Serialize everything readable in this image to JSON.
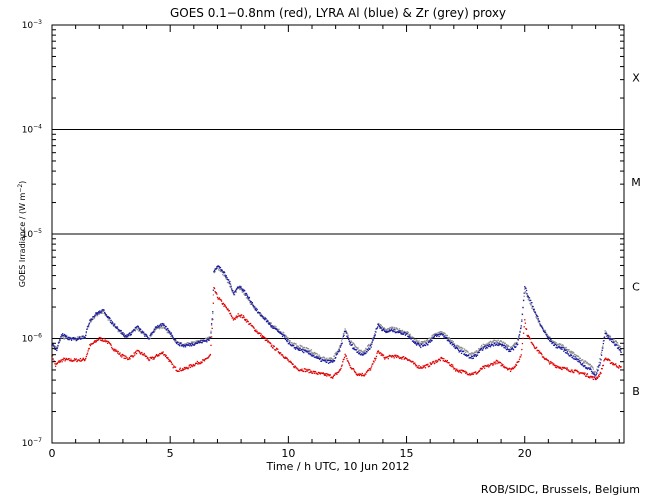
{
  "chart_data": {
    "type": "scatter",
    "title": "GOES 0.1−0.8nm (red), LYRA Al (blue) & Zr (grey) proxy",
    "xlabel": "Time / h UTC, 10 Jun 2012",
    "ylabel": "GOES Irradiance / (W m",
    "ylabel_sup": "−2",
    "ylabel_end": ")",
    "credit": "ROB/SIDC, Brussels, Belgium",
    "xlim": [
      0,
      24.2
    ],
    "ylim": [
      1e-07,
      0.001
    ],
    "yscale": "log",
    "x_ticks": [
      0,
      5,
      10,
      15,
      20
    ],
    "x_tick_labels": [
      "0",
      "5",
      "10",
      "15",
      "20"
    ],
    "y_ticks": [
      {
        "value": 1e-07,
        "base": "10",
        "exp": "−7"
      },
      {
        "value": 1e-06,
        "base": "10",
        "exp": "−6"
      },
      {
        "value": 1e-05,
        "base": "10",
        "exp": "−5"
      },
      {
        "value": 0.0001,
        "base": "10",
        "exp": "−4"
      },
      {
        "value": 0.001,
        "base": "10",
        "exp": "−3"
      }
    ],
    "flare_class_lines": [
      1e-06,
      1e-05,
      0.0001
    ],
    "flare_classes": [
      {
        "label": "X",
        "value": 0.000316
      },
      {
        "label": "M",
        "value": 3.16e-05
      },
      {
        "label": "C",
        "value": 3.16e-06
      },
      {
        "label": "B",
        "value": 3.16e-07
      }
    ],
    "series": [
      {
        "name": "GOES 0.1-0.8nm",
        "color": "#e00000",
        "points": [
          [
            0.0,
            7e-07
          ],
          [
            0.15,
            5.5e-07
          ],
          [
            0.3,
            6e-07
          ],
          [
            0.5,
            6.3e-07
          ],
          [
            0.8,
            6.2e-07
          ],
          [
            1.0,
            6.2e-07
          ],
          [
            1.4,
            6.3e-07
          ],
          [
            1.6,
            8.5e-07
          ],
          [
            1.8,
            9.2e-07
          ],
          [
            2.0,
            1e-06
          ],
          [
            2.3,
            9.5e-07
          ],
          [
            2.6,
            8e-07
          ],
          [
            2.9,
            7e-07
          ],
          [
            3.2,
            6.4e-07
          ],
          [
            3.4,
            6.8e-07
          ],
          [
            3.6,
            7.5e-07
          ],
          [
            3.9,
            7e-07
          ],
          [
            4.1,
            6.3e-07
          ],
          [
            4.3,
            6.5e-07
          ],
          [
            4.5,
            7e-07
          ],
          [
            4.7,
            7.3e-07
          ],
          [
            4.9,
            6.5e-07
          ],
          [
            5.1,
            5.5e-07
          ],
          [
            5.3,
            5e-07
          ],
          [
            5.6,
            5.1e-07
          ],
          [
            5.9,
            5.5e-07
          ],
          [
            6.2,
            5.9e-07
          ],
          [
            6.5,
            6.2e-07
          ],
          [
            6.7,
            7e-07
          ],
          [
            6.8,
            1.5e-06
          ],
          [
            6.85,
            3e-06
          ],
          [
            7.0,
            2.5e-06
          ],
          [
            7.2,
            2.2e-06
          ],
          [
            7.5,
            1.8e-06
          ],
          [
            7.7,
            1.5e-06
          ],
          [
            7.9,
            1.7e-06
          ],
          [
            8.1,
            1.6e-06
          ],
          [
            8.4,
            1.35e-06
          ],
          [
            8.7,
            1.15e-06
          ],
          [
            9.0,
            1e-06
          ],
          [
            9.3,
            8.5e-07
          ],
          [
            9.6,
            7.5e-07
          ],
          [
            9.9,
            6.5e-07
          ],
          [
            10.1,
            5.8e-07
          ],
          [
            10.4,
            5.1e-07
          ],
          [
            10.7,
            5e-07
          ],
          [
            11.0,
            4.8e-07
          ],
          [
            11.3,
            4.6e-07
          ],
          [
            11.6,
            4.5e-07
          ],
          [
            11.9,
            4.3e-07
          ],
          [
            12.2,
            5e-07
          ],
          [
            12.4,
            7e-07
          ],
          [
            12.6,
            5.5e-07
          ],
          [
            12.9,
            4.6e-07
          ],
          [
            13.2,
            4.5e-07
          ],
          [
            13.5,
            5.2e-07
          ],
          [
            13.8,
            7.5e-07
          ],
          [
            14.1,
            6.5e-07
          ],
          [
            14.4,
            6.8e-07
          ],
          [
            14.7,
            6.6e-07
          ],
          [
            15.0,
            6.5e-07
          ],
          [
            15.2,
            6e-07
          ],
          [
            15.4,
            5.5e-07
          ],
          [
            15.6,
            5.3e-07
          ],
          [
            15.9,
            5.5e-07
          ],
          [
            16.2,
            6e-07
          ],
          [
            16.5,
            6.4e-07
          ],
          [
            16.8,
            5.8e-07
          ],
          [
            17.1,
            5e-07
          ],
          [
            17.4,
            4.8e-07
          ],
          [
            17.7,
            4.6e-07
          ],
          [
            18.0,
            4.7e-07
          ],
          [
            18.2,
            5.2e-07
          ],
          [
            18.5,
            5.5e-07
          ],
          [
            18.8,
            6e-07
          ],
          [
            19.1,
            5.5e-07
          ],
          [
            19.4,
            5e-07
          ],
          [
            19.7,
            5.8e-07
          ],
          [
            19.85,
            7e-07
          ],
          [
            20.0,
            1.5e-06
          ],
          [
            20.1,
            1.1e-06
          ],
          [
            20.4,
            8.5e-07
          ],
          [
            20.7,
            7e-07
          ],
          [
            21.0,
            6e-07
          ],
          [
            21.3,
            5.5e-07
          ],
          [
            21.6,
            5.2e-07
          ],
          [
            21.9,
            5e-07
          ],
          [
            22.2,
            4.8e-07
          ],
          [
            22.5,
            4.6e-07
          ],
          [
            22.8,
            4.3e-07
          ],
          [
            23.0,
            4.1e-07
          ],
          [
            23.2,
            4.6e-07
          ],
          [
            23.4,
            6.5e-07
          ],
          [
            23.6,
            6e-07
          ],
          [
            23.9,
            5.5e-07
          ],
          [
            24.1,
            5.2e-07
          ]
        ]
      },
      {
        "name": "LYRA Zr proxy",
        "color": "#8c8c8c",
        "points": [
          [
            0.0,
            9e-07
          ],
          [
            0.2,
            8e-07
          ],
          [
            0.4,
            1.05e-06
          ],
          [
            0.7,
            9.8e-07
          ],
          [
            1.0,
            1e-06
          ],
          [
            1.4,
            1.05e-06
          ],
          [
            1.6,
            1.45e-06
          ],
          [
            1.9,
            1.7e-06
          ],
          [
            2.2,
            1.8e-06
          ],
          [
            2.5,
            1.4e-06
          ],
          [
            2.8,
            1.2e-06
          ],
          [
            3.1,
            1.05e-06
          ],
          [
            3.3,
            1.1e-06
          ],
          [
            3.6,
            1.25e-06
          ],
          [
            3.9,
            1.1e-06
          ],
          [
            4.1,
            1e-06
          ],
          [
            4.4,
            1.25e-06
          ],
          [
            4.7,
            1.3e-06
          ],
          [
            5.0,
            1.1e-06
          ],
          [
            5.3,
            9e-07
          ],
          [
            5.6,
            8.7e-07
          ],
          [
            5.9,
            9e-07
          ],
          [
            6.2,
            9.3e-07
          ],
          [
            6.5,
            9.8e-07
          ],
          [
            6.7,
            1.05e-06
          ],
          [
            6.8,
            1.7e-06
          ],
          [
            6.85,
            4.2e-06
          ],
          [
            7.0,
            4.8e-06
          ],
          [
            7.2,
            4.3e-06
          ],
          [
            7.5,
            3.3e-06
          ],
          [
            7.7,
            2.6e-06
          ],
          [
            7.9,
            3.1e-06
          ],
          [
            8.1,
            2.8e-06
          ],
          [
            8.4,
            2.2e-06
          ],
          [
            8.7,
            1.8e-06
          ],
          [
            9.0,
            1.55e-06
          ],
          [
            9.3,
            1.35e-06
          ],
          [
            9.6,
            1.2e-06
          ],
          [
            9.9,
            1.05e-06
          ],
          [
            10.1,
            9e-07
          ],
          [
            10.4,
            8.5e-07
          ],
          [
            10.7,
            8e-07
          ],
          [
            11.0,
            7.5e-07
          ],
          [
            11.3,
            6.8e-07
          ],
          [
            11.6,
            6.4e-07
          ],
          [
            11.9,
            6.5e-07
          ],
          [
            12.2,
            8.5e-07
          ],
          [
            12.4,
            1.25e-06
          ],
          [
            12.6,
            9.5e-07
          ],
          [
            12.9,
            8e-07
          ],
          [
            13.2,
            7.5e-07
          ],
          [
            13.5,
            9e-07
          ],
          [
            13.8,
            1.4e-06
          ],
          [
            14.1,
            1.2e-06
          ],
          [
            14.4,
            1.25e-06
          ],
          [
            14.7,
            1.2e-06
          ],
          [
            15.0,
            1.15e-06
          ],
          [
            15.2,
            1.05e-06
          ],
          [
            15.4,
            9.5e-07
          ],
          [
            15.6,
            9e-07
          ],
          [
            15.9,
            9.5e-07
          ],
          [
            16.2,
            1.1e-06
          ],
          [
            16.5,
            1.15e-06
          ],
          [
            16.8,
            1e-06
          ],
          [
            17.1,
            8.5e-07
          ],
          [
            17.4,
            7.8e-07
          ],
          [
            17.7,
            7e-07
          ],
          [
            18.0,
            7.5e-07
          ],
          [
            18.2,
            8.5e-07
          ],
          [
            18.5,
            9e-07
          ],
          [
            18.8,
            9.5e-07
          ],
          [
            19.1,
            9e-07
          ],
          [
            19.4,
            8e-07
          ],
          [
            19.7,
            9.5e-07
          ],
          [
            19.85,
            1.3e-06
          ],
          [
            20.0,
            3e-06
          ],
          [
            20.1,
            2.5e-06
          ],
          [
            20.4,
            1.8e-06
          ],
          [
            20.7,
            1.3e-06
          ],
          [
            21.0,
            1.05e-06
          ],
          [
            21.3,
            9e-07
          ],
          [
            21.6,
            8.5e-07
          ],
          [
            21.9,
            7.5e-07
          ],
          [
            22.2,
            6.8e-07
          ],
          [
            22.5,
            6e-07
          ],
          [
            22.8,
            5.5e-07
          ],
          [
            23.0,
            4.6e-07
          ],
          [
            23.2,
            6.5e-07
          ],
          [
            23.4,
            1.15e-06
          ],
          [
            23.6,
            1.05e-06
          ],
          [
            23.9,
            9e-07
          ],
          [
            24.1,
            8e-07
          ]
        ]
      },
      {
        "name": "LYRA Al proxy",
        "color": "#1a1aa0",
        "points": [
          [
            0.0,
            8.8e-07
          ],
          [
            0.2,
            7.8e-07
          ],
          [
            0.4,
            1.1e-06
          ],
          [
            0.7,
            1e-06
          ],
          [
            1.0,
            9.8e-07
          ],
          [
            1.4,
            1.05e-06
          ],
          [
            1.6,
            1.5e-06
          ],
          [
            1.9,
            1.75e-06
          ],
          [
            2.2,
            1.85e-06
          ],
          [
            2.5,
            1.45e-06
          ],
          [
            2.8,
            1.25e-06
          ],
          [
            3.1,
            1.05e-06
          ],
          [
            3.3,
            1.1e-06
          ],
          [
            3.6,
            1.3e-06
          ],
          [
            3.9,
            1.1e-06
          ],
          [
            4.1,
            1e-06
          ],
          [
            4.4,
            1.3e-06
          ],
          [
            4.7,
            1.35e-06
          ],
          [
            5.0,
            1.15e-06
          ],
          [
            5.3,
            9e-07
          ],
          [
            5.6,
            8.5e-07
          ],
          [
            5.9,
            8.8e-07
          ],
          [
            6.2,
            9.2e-07
          ],
          [
            6.5,
            9.5e-07
          ],
          [
            6.7,
            1e-06
          ],
          [
            6.8,
            1.8e-06
          ],
          [
            6.85,
            4.5e-06
          ],
          [
            7.0,
            5e-06
          ],
          [
            7.2,
            4.5e-06
          ],
          [
            7.5,
            3.5e-06
          ],
          [
            7.7,
            2.7e-06
          ],
          [
            7.9,
            3.2e-06
          ],
          [
            8.1,
            2.9e-06
          ],
          [
            8.4,
            2.3e-06
          ],
          [
            8.7,
            1.8e-06
          ],
          [
            9.0,
            1.55e-06
          ],
          [
            9.3,
            1.3e-06
          ],
          [
            9.6,
            1.15e-06
          ],
          [
            9.9,
            1e-06
          ],
          [
            10.1,
            8.5e-07
          ],
          [
            10.4,
            8e-07
          ],
          [
            10.7,
            7.5e-07
          ],
          [
            11.0,
            7e-07
          ],
          [
            11.3,
            6.3e-07
          ],
          [
            11.6,
            6e-07
          ],
          [
            11.9,
            6e-07
          ],
          [
            12.2,
            8e-07
          ],
          [
            12.4,
            1.2e-06
          ],
          [
            12.6,
            9e-07
          ],
          [
            12.9,
            7.5e-07
          ],
          [
            13.2,
            7e-07
          ],
          [
            13.5,
            8.5e-07
          ],
          [
            13.8,
            1.35e-06
          ],
          [
            14.1,
            1.15e-06
          ],
          [
            14.4,
            1.2e-06
          ],
          [
            14.7,
            1.15e-06
          ],
          [
            15.0,
            1.1e-06
          ],
          [
            15.2,
            1e-06
          ],
          [
            15.4,
            9e-07
          ],
          [
            15.6,
            8.5e-07
          ],
          [
            15.9,
            9e-07
          ],
          [
            16.2,
            1.05e-06
          ],
          [
            16.5,
            1.1e-06
          ],
          [
            16.8,
            9.5e-07
          ],
          [
            17.1,
            8e-07
          ],
          [
            17.4,
            7.3e-07
          ],
          [
            17.7,
            6.5e-07
          ],
          [
            18.0,
            7e-07
          ],
          [
            18.2,
            8e-07
          ],
          [
            18.5,
            8.5e-07
          ],
          [
            18.8,
            9e-07
          ],
          [
            19.1,
            8.5e-07
          ],
          [
            19.4,
            7.5e-07
          ],
          [
            19.7,
            9e-07
          ],
          [
            19.85,
            1.3e-06
          ],
          [
            20.0,
            3.2e-06
          ],
          [
            20.1,
            2.7e-06
          ],
          [
            20.4,
            1.9e-06
          ],
          [
            20.7,
            1.3e-06
          ],
          [
            21.0,
            1e-06
          ],
          [
            21.3,
            8.5e-07
          ],
          [
            21.6,
            8e-07
          ],
          [
            21.9,
            7e-07
          ],
          [
            22.2,
            6.3e-07
          ],
          [
            22.5,
            5.5e-07
          ],
          [
            22.8,
            5e-07
          ],
          [
            23.0,
            4.3e-07
          ],
          [
            23.2,
            6e-07
          ],
          [
            23.4,
            1.1e-06
          ],
          [
            23.6,
            1e-06
          ],
          [
            23.9,
            8.5e-07
          ],
          [
            24.1,
            7.5e-07
          ]
        ]
      }
    ]
  }
}
